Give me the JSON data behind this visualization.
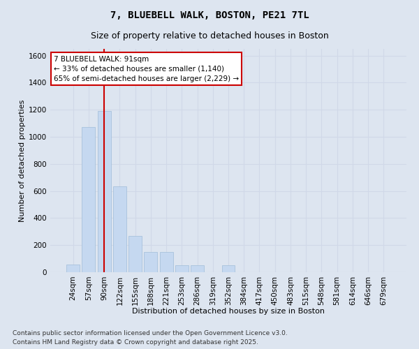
{
  "title_line1": "7, BLUEBELL WALK, BOSTON, PE21 7TL",
  "title_line2": "Size of property relative to detached houses in Boston",
  "xlabel": "Distribution of detached houses by size in Boston",
  "ylabel": "Number of detached properties",
  "categories": [
    "24sqm",
    "57sqm",
    "90sqm",
    "122sqm",
    "155sqm",
    "188sqm",
    "221sqm",
    "253sqm",
    "286sqm",
    "319sqm",
    "352sqm",
    "384sqm",
    "417sqm",
    "450sqm",
    "483sqm",
    "515sqm",
    "548sqm",
    "581sqm",
    "614sqm",
    "646sqm",
    "679sqm"
  ],
  "values": [
    55,
    1075,
    1190,
    635,
    270,
    150,
    150,
    50,
    50,
    0,
    50,
    0,
    0,
    0,
    0,
    0,
    0,
    0,
    0,
    0,
    0
  ],
  "bar_color": "#c5d8f0",
  "bar_edge_color": "#a0bcd8",
  "vline_x_index": 2,
  "vline_color": "#cc0000",
  "annotation_text": "7 BLUEBELL WALK: 91sqm\n← 33% of detached houses are smaller (1,140)\n65% of semi-detached houses are larger (2,229) →",
  "annotation_box_facecolor": "#ffffff",
  "annotation_box_edgecolor": "#cc0000",
  "ylim": [
    0,
    1650
  ],
  "yticks": [
    0,
    200,
    400,
    600,
    800,
    1000,
    1200,
    1400,
    1600
  ],
  "grid_color": "#d0d8e8",
  "background_color": "#dde5f0",
  "plot_bg_color": "#dde5f0",
  "footnote_line1": "Contains HM Land Registry data © Crown copyright and database right 2025.",
  "footnote_line2": "Contains public sector information licensed under the Open Government Licence v3.0.",
  "title_fontsize": 10,
  "subtitle_fontsize": 9,
  "xlabel_fontsize": 8,
  "ylabel_fontsize": 8,
  "tick_fontsize": 7.5,
  "annotation_fontsize": 7.5,
  "footnote_fontsize": 6.5
}
